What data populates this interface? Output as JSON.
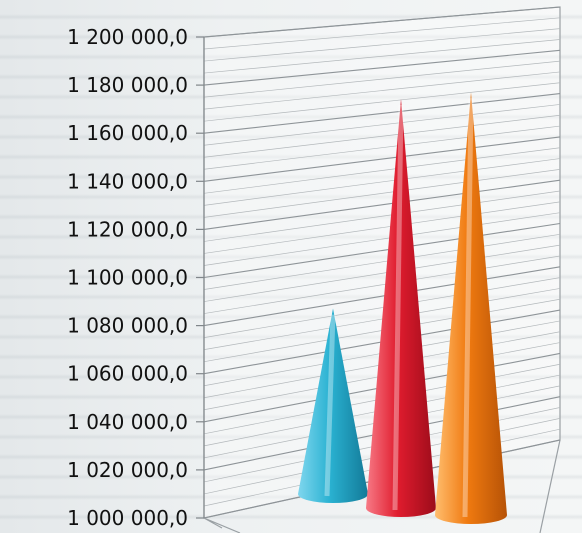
{
  "chart_data": {
    "type": "bar",
    "style": "3d-cone",
    "categories": [
      "",
      "",
      ""
    ],
    "values": [
      1080000,
      1180000,
      1190000
    ],
    "colors": [
      "#2ab2d2",
      "#e01c2e",
      "#f07a10"
    ],
    "ylim": [
      1000000,
      1200000
    ],
    "yticks": [
      "1 000 000,0",
      "1 020 000,0",
      "1 040 000,0",
      "1 060 000,0",
      "1 080 000,0",
      "1 100 000,0",
      "1 120 000,0",
      "1 140 000,0",
      "1 160 000,0",
      "1 180 000,0",
      "1 200 000,0"
    ],
    "grid": true,
    "legend": "none",
    "title": "",
    "xlabel": "",
    "ylabel": ""
  }
}
